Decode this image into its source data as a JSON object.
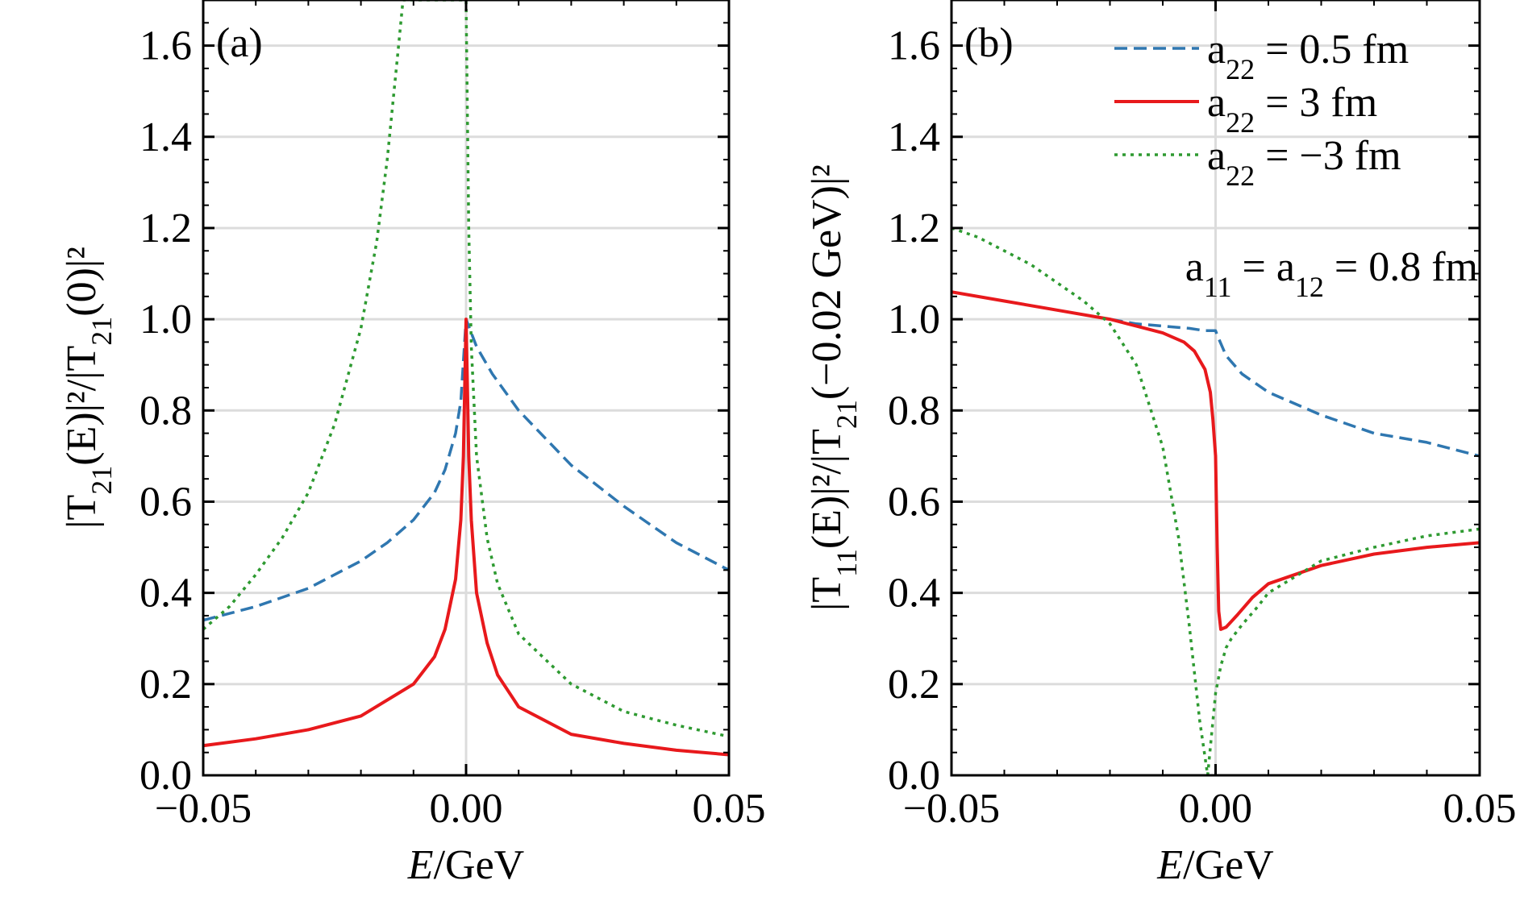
{
  "chart_data": [
    {
      "type": "line",
      "panel_label": "(a)",
      "xlabel": "E/GeV",
      "ylabel": "|T21(E)|²/|T21(0)|²",
      "xlim": [
        -0.05,
        0.05
      ],
      "ylim": [
        0.0,
        1.7
      ],
      "xticks": [
        -0.05,
        0.0,
        0.05
      ],
      "xtick_labels": [
        "−0.05",
        "0.00",
        "0.05"
      ],
      "yticks": [
        0.0,
        0.2,
        0.4,
        0.6,
        0.8,
        1.0,
        1.2,
        1.4,
        1.6
      ],
      "ytick_labels": [
        "0.0",
        "0.2",
        "0.4",
        "0.6",
        "0.8",
        "1.0",
        "1.2",
        "1.4",
        "1.6"
      ],
      "grid": true,
      "series": [
        {
          "name": "a22 = 0.5 fm",
          "color": "#2f77b0",
          "style": "dashed",
          "x": [
            -0.05,
            -0.04,
            -0.03,
            -0.02,
            -0.015,
            -0.01,
            -0.006,
            -0.004,
            -0.002,
            -0.001,
            0.0,
            0.002,
            0.005,
            0.01,
            0.02,
            0.03,
            0.04,
            0.05
          ],
          "y": [
            0.34,
            0.37,
            0.41,
            0.47,
            0.51,
            0.56,
            0.62,
            0.67,
            0.75,
            0.82,
            1.0,
            0.94,
            0.88,
            0.8,
            0.68,
            0.59,
            0.51,
            0.45
          ]
        },
        {
          "name": "a22 = 3 fm",
          "color": "#e8191c",
          "style": "solid",
          "x": [
            -0.05,
            -0.04,
            -0.03,
            -0.02,
            -0.01,
            -0.006,
            -0.004,
            -0.002,
            -0.001,
            -0.0005,
            0.0,
            0.0005,
            0.001,
            0.002,
            0.004,
            0.006,
            0.01,
            0.02,
            0.03,
            0.04,
            0.05
          ],
          "y": [
            0.065,
            0.08,
            0.1,
            0.13,
            0.2,
            0.26,
            0.32,
            0.43,
            0.56,
            0.7,
            1.0,
            0.7,
            0.56,
            0.4,
            0.29,
            0.22,
            0.15,
            0.09,
            0.07,
            0.055,
            0.045
          ]
        },
        {
          "name": "a22 = −3 fm",
          "color": "#2e9a31",
          "style": "dotted",
          "x": [
            -0.05,
            -0.045,
            -0.04,
            -0.035,
            -0.03,
            -0.025,
            -0.02,
            -0.017,
            -0.015,
            -0.013,
            -0.012,
            0.0,
            0.0005,
            0.001,
            0.002,
            0.004,
            0.006,
            0.01,
            0.02,
            0.03,
            0.04,
            0.05
          ],
          "y": [
            0.32,
            0.37,
            0.44,
            0.52,
            0.62,
            0.77,
            0.98,
            1.17,
            1.35,
            1.58,
            1.7,
            1.7,
            1.2,
            0.94,
            0.7,
            0.52,
            0.42,
            0.31,
            0.2,
            0.14,
            0.11,
            0.085
          ]
        }
      ]
    },
    {
      "type": "line",
      "panel_label": "(b)",
      "xlabel": "E/GeV",
      "ylabel": "|T11(E)|²/|T21(−0.02 GeV)|²",
      "xlim": [
        -0.05,
        0.05
      ],
      "ylim": [
        0.0,
        1.7
      ],
      "xticks": [
        -0.05,
        0.0,
        0.05
      ],
      "xtick_labels": [
        "−0.05",
        "0.00",
        "0.05"
      ],
      "yticks": [
        0.0,
        0.2,
        0.4,
        0.6,
        0.8,
        1.0,
        1.2,
        1.4,
        1.6
      ],
      "ytick_labels": [
        "0.0",
        "0.2",
        "0.4",
        "0.6",
        "0.8",
        "1.0",
        "1.2",
        "1.4",
        "1.6"
      ],
      "grid": true,
      "legend_position": "top-right",
      "annotation": "a11 = a12 = 0.8 fm",
      "series": [
        {
          "name": "a22 = 0.5 fm",
          "color": "#2f77b0",
          "style": "dashed",
          "x": [
            -0.02,
            -0.015,
            -0.01,
            -0.005,
            -0.002,
            0.0,
            0.0005,
            0.002,
            0.005,
            0.01,
            0.02,
            0.03,
            0.04,
            0.05
          ],
          "y": [
            1.0,
            0.99,
            0.985,
            0.98,
            0.975,
            0.975,
            0.96,
            0.92,
            0.88,
            0.84,
            0.79,
            0.75,
            0.73,
            0.7
          ]
        },
        {
          "name": "a22 = 3 fm",
          "color": "#e8191c",
          "style": "solid",
          "x": [
            -0.05,
            -0.04,
            -0.03,
            -0.02,
            -0.015,
            -0.01,
            -0.006,
            -0.004,
            -0.002,
            -0.001,
            -0.0005,
            0.0,
            0.0003,
            0.0006,
            0.001,
            0.002,
            0.004,
            0.007,
            0.01,
            0.02,
            0.03,
            0.04,
            0.05
          ],
          "y": [
            1.06,
            1.04,
            1.02,
            1.0,
            0.985,
            0.97,
            0.95,
            0.93,
            0.89,
            0.84,
            0.78,
            0.7,
            0.5,
            0.36,
            0.32,
            0.325,
            0.35,
            0.39,
            0.42,
            0.46,
            0.485,
            0.5,
            0.51
          ]
        },
        {
          "name": "a22 = −3 fm",
          "color": "#2e9a31",
          "style": "dotted",
          "x": [
            -0.05,
            -0.045,
            -0.04,
            -0.035,
            -0.03,
            -0.025,
            -0.02,
            -0.015,
            -0.01,
            -0.007,
            -0.005,
            -0.003,
            -0.0015,
            0.0,
            0.001,
            0.002,
            0.003,
            0.005,
            0.008,
            0.01,
            0.02,
            0.03,
            0.04,
            0.05
          ],
          "y": [
            1.2,
            1.18,
            1.15,
            1.12,
            1.08,
            1.04,
            0.99,
            0.9,
            0.72,
            0.52,
            0.33,
            0.12,
            0.0,
            0.18,
            0.24,
            0.28,
            0.3,
            0.33,
            0.37,
            0.4,
            0.47,
            0.5,
            0.525,
            0.54
          ]
        }
      ]
    }
  ]
}
